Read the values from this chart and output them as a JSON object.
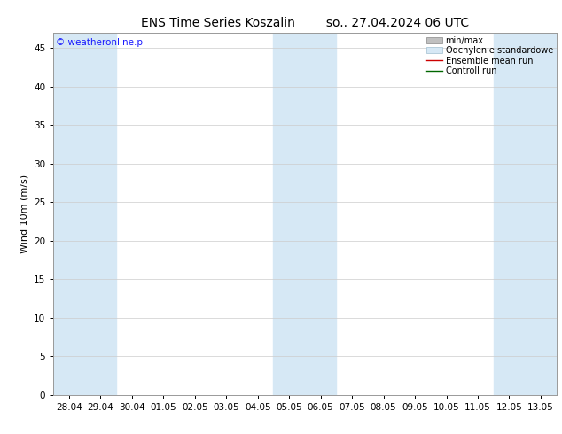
{
  "title_left": "ENS Time Series Koszalin",
  "title_right": "so.. 27.04.2024 06 UTC",
  "ylabel": "Wind 10m (m/s)",
  "ylim": [
    0,
    47
  ],
  "yticks": [
    0,
    5,
    10,
    15,
    20,
    25,
    30,
    35,
    40,
    45
  ],
  "xlabels": [
    "28.04",
    "29.04",
    "30.04",
    "01.05",
    "02.05",
    "03.05",
    "04.05",
    "05.05",
    "06.05",
    "07.05",
    "08.05",
    "09.05",
    "10.05",
    "11.05",
    "12.05",
    "13.05"
  ],
  "shaded_cols": [
    0,
    1,
    7,
    8,
    14,
    15
  ],
  "shaded_color": "#d6e8f5",
  "background_color": "#ffffff",
  "watermark_text": "© weatheronline.pl",
  "watermark_color": "#1a1aff",
  "legend_labels": [
    "min/max",
    "Odchylenie standardowe",
    "Ensemble mean run",
    "Controll run"
  ],
  "legend_fill_colors": [
    "#c0c0c0",
    "#d6e8f5",
    null,
    null
  ],
  "legend_edge_colors": [
    "#888888",
    "#a0bed0",
    null,
    null
  ],
  "legend_line_colors": [
    null,
    null,
    "#cc0000",
    "#006600"
  ],
  "title_fontsize": 10,
  "label_fontsize": 8,
  "tick_fontsize": 7.5,
  "watermark_fontsize": 7.5,
  "legend_fontsize": 7
}
